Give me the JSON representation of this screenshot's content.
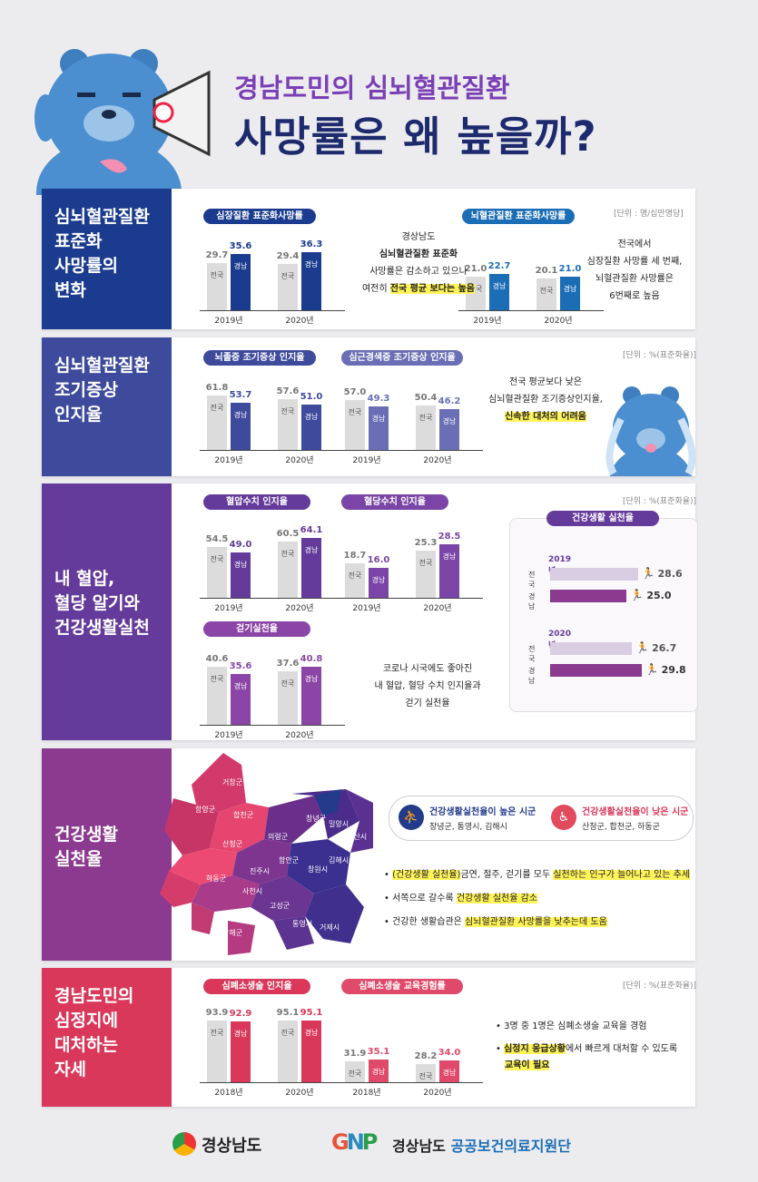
{
  "header": {
    "line1": "경남도민의 심뇌혈관질환",
    "line2": "사망률은 왜 높을까?"
  },
  "sections": [
    {
      "title": "심뇌혈관질환\n표준화\n사망률의\n변화",
      "num": "1"
    },
    {
      "title": "심뇌혈관질환\n조기증상\n인지율",
      "num": "2"
    },
    {
      "title": "내 혈압,\n혈당 알기와\n건강생활실천",
      "num": "3"
    },
    {
      "title": "건강생활\n실천율",
      "num": "4"
    },
    {
      "title": "경남도민의\n심정지에\n대처하는\n자세",
      "num": "5"
    }
  ],
  "labels": {
    "nation": "전국",
    "gn": "경남"
  },
  "s1": {
    "unit": "[단위 : 명/십만명당]",
    "chart1": {
      "title": "심장질환 표준화사망률",
      "groups": [
        {
          "year": "2019년",
          "nation": 29.7,
          "gn": 35.6
        },
        {
          "year": "2020년",
          "nation": 29.4,
          "gn": 36.3
        }
      ]
    },
    "chart2": {
      "title": "뇌혈관질환 표준화사망률",
      "groups": [
        {
          "year": "2019년",
          "nation": 21.0,
          "gn": 22.7
        },
        {
          "year": "2020년",
          "nation": 20.1,
          "gn": 21.0
        }
      ]
    },
    "note1": {
      "l1": "경상남도",
      "l2": "심뇌혈관질환 표준화",
      "l3": "사망률은 감소하고 있으나",
      "l4a": "여전히 ",
      "l4b": "전국 평균 보다는 높음"
    },
    "note2": "전국에서\n심장질환 사망률 세 번째,\n뇌혈관질환 사망률은\n6번째로 높음"
  },
  "s2": {
    "unit": "[단위 : %(표준화율)]",
    "chart1": {
      "title": "뇌졸중 조기증상 인지율",
      "groups": [
        {
          "year": "2019년",
          "nation": 61.8,
          "gn": 53.7
        },
        {
          "year": "2020년",
          "nation": 57.6,
          "gn": 51.0
        }
      ]
    },
    "chart2": {
      "title": "심근경색증 조기증상 인지율",
      "groups": [
        {
          "year": "2019년",
          "nation": 57.0,
          "gn": 49.3
        },
        {
          "year": "2020년",
          "nation": 50.4,
          "gn": 46.2
        }
      ]
    },
    "note": {
      "l1": "전국 평균보다 낮은",
      "l2": "심뇌혈관질환 조기증상인지율,",
      "l3": "신속한 대처의 어려움"
    }
  },
  "s3": {
    "unit": "[단위 : %(표준화율)]",
    "chart1": {
      "title": "혈압수치 인지율",
      "groups": [
        {
          "year": "2019년",
          "nation": 54.5,
          "gn": 49.0
        },
        {
          "year": "2020년",
          "nation": 60.5,
          "gn": 64.1
        }
      ]
    },
    "chart2": {
      "title": "혈당수치 인지율",
      "groups": [
        {
          "year": "2019년",
          "nation": 18.7,
          "gn": 16.0
        },
        {
          "year": "2020년",
          "nation": 25.3,
          "gn": 28.5
        }
      ]
    },
    "chart3": {
      "title": "걷기실천율",
      "groups": [
        {
          "year": "2019년",
          "nation": 40.6,
          "gn": 35.6
        },
        {
          "year": "2020년",
          "nation": 37.6,
          "gn": 40.8
        }
      ]
    },
    "note": "코로나 시국에도 좋아진\n내 혈압, 혈당 수치 인지율과\n걷기 실천율",
    "practice": {
      "title": "건강생활 실천율",
      "years": [
        {
          "year": "2019년",
          "nation": 28.6,
          "gn": 25.0
        },
        {
          "year": "2020년",
          "nation": 26.7,
          "gn": 29.8
        }
      ]
    }
  },
  "s4": {
    "high": {
      "title": "건강생활실천율이 높은 시군",
      "list": "창녕군, 통영시, 김해시"
    },
    "low": {
      "title": "건강생활실천율이 낮은 시군",
      "list": "산청군, 합천군, 하동군"
    },
    "bullets": [
      {
        "a": "• ",
        "b": "(건강생활 실천율)",
        "c": "금연, 절주, 걷기를 모두 ",
        "d": "실천하는 인구가 늘어나고 있는 추세",
        "e": ""
      },
      {
        "a": "• 서쪽으로 갈수록 ",
        "b": "",
        "c": "",
        "d": "건강생활 실천율 감소",
        "e": ""
      },
      {
        "a": "• 건강한 생활습관은 ",
        "b": "",
        "c": "",
        "d": "심뇌혈관질환 사망률을 낮추는데 도움",
        "e": ""
      }
    ],
    "regions": [
      "거창군",
      "함양군",
      "합천군",
      "산청군",
      "의령군",
      "창녕군",
      "밀양시",
      "양산시",
      "함안군",
      "창원시",
      "김해시",
      "진주시",
      "하동군",
      "사천시",
      "고성군",
      "남해군",
      "통영시",
      "거제시"
    ]
  },
  "s5": {
    "unit": "[단위 : %(표준화율)]",
    "chart1": {
      "title": "심폐소생술 인지율",
      "groups": [
        {
          "year": "2018년",
          "nation": 93.9,
          "gn": 92.9
        },
        {
          "year": "2020년",
          "nation": 95.1,
          "gn": 95.1
        }
      ]
    },
    "chart2": {
      "title": "심폐소생술 교육경험률",
      "groups": [
        {
          "year": "2018년",
          "nation": 31.9,
          "gn": 35.1
        },
        {
          "year": "2020년",
          "nation": 28.2,
          "gn": 34.0
        }
      ]
    },
    "b1": "• 3명 중 1명은 심폐소생술 교육을 경험",
    "b2a": "심정지 응급상황",
    "b2b": "에서 빠르게 대처할 수 있도록",
    "b2c": "교육이 필요"
  },
  "footer": {
    "left": "경상남도",
    "right1": "경상남도 ",
    "right2": "공공보건의료지원단"
  },
  "colors": {
    "s1": "#1b3b8f",
    "s2": "#3e4a9c",
    "s3": "#643b9a",
    "s4": "#8b3a8f",
    "s5": "#d9385a",
    "gray": "#dcdcdc"
  }
}
